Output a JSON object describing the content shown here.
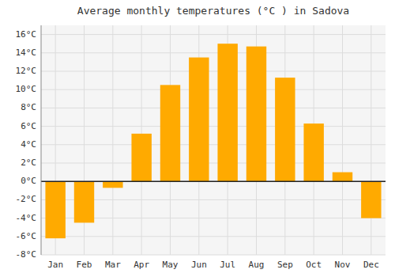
{
  "chart_data": {
    "type": "bar",
    "title": "Average monthly temperatures (°C ) in Sadova",
    "categories": [
      "Jan",
      "Feb",
      "Mar",
      "Apr",
      "May",
      "Jun",
      "Jul",
      "Aug",
      "Sep",
      "Oct",
      "Nov",
      "Dec"
    ],
    "values": [
      -6.2,
      -4.5,
      -0.7,
      5.2,
      10.5,
      13.5,
      15.0,
      14.7,
      11.3,
      6.3,
      1.0,
      -4.0
    ],
    "color": "#FFAA00",
    "ylim": [
      -8,
      17
    ],
    "yticks": [
      {
        "value": -8,
        "label": "-8°C"
      },
      {
        "value": -6,
        "label": "-6°C"
      },
      {
        "value": -4,
        "label": "-4°C"
      },
      {
        "value": -2,
        "label": "-2°C"
      },
      {
        "value": 0,
        "label": "0°C"
      },
      {
        "value": 2,
        "label": "2°C"
      },
      {
        "value": 4,
        "label": "4°C"
      },
      {
        "value": 6,
        "label": "6°C"
      },
      {
        "value": 8,
        "label": "8°C"
      },
      {
        "value": 10,
        "label": "10°C"
      },
      {
        "value": 12,
        "label": "12°C"
      },
      {
        "value": 14,
        "label": "14°C"
      },
      {
        "value": 16,
        "label": "16°C"
      }
    ],
    "grid": true
  }
}
